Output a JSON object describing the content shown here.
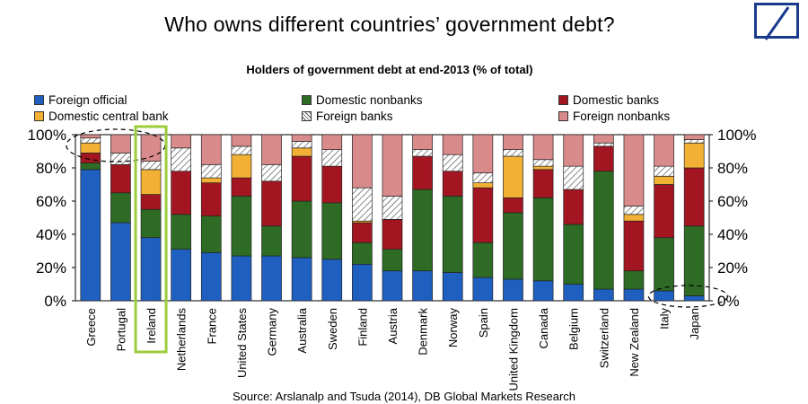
{
  "header": {
    "title": "Who owns different countries’ government debt?",
    "logo_icon": "deutsche-bank-logo"
  },
  "chart_data": {
    "type": "stacked-bar",
    "title": "Holders of government debt at end-2013 (% of total)",
    "ylim": [
      0,
      100
    ],
    "y_ticks": [
      "0%",
      "20%",
      "40%",
      "60%",
      "80%",
      "100%"
    ],
    "legend_placement": "top",
    "categories": [
      "Greece",
      "Portugal",
      "Ireland",
      "Netherlands",
      "France",
      "United States",
      "Germany",
      "Australia",
      "Sweden",
      "Finland",
      "Austria",
      "Denmark",
      "Norway",
      "Spain",
      "United Kingdom",
      "Canada",
      "Belgium",
      "Switzerland",
      "New Zealand",
      "Italy",
      "Japan"
    ],
    "series": [
      {
        "name": "Foreign official",
        "color": "#1f5fbf",
        "values": [
          79,
          47,
          38,
          31,
          29,
          27,
          27,
          26,
          25,
          22,
          18,
          18,
          17,
          14,
          13,
          12,
          10,
          7,
          7,
          6,
          3
        ]
      },
      {
        "name": "Domestic nonbanks",
        "color": "#2e6b24",
        "values": [
          4,
          18,
          17,
          21,
          22,
          36,
          18,
          34,
          34,
          13,
          13,
          49,
          46,
          21,
          40,
          50,
          36,
          71,
          11,
          32,
          42
        ]
      },
      {
        "name": "Domestic banks",
        "color": "#a31621",
        "values": [
          6,
          17,
          9,
          26,
          20,
          11,
          27,
          27,
          22,
          12,
          18,
          20,
          15,
          33,
          9,
          17,
          21,
          15,
          30,
          32,
          35
        ]
      },
      {
        "name": "Domestic central bank",
        "color": "#f2b134",
        "values": [
          6,
          0,
          15,
          0,
          3,
          14,
          0,
          5,
          0,
          1,
          0,
          0,
          0,
          3,
          25,
          2,
          0,
          0,
          4,
          5,
          15
        ]
      },
      {
        "name": "Foreign banks",
        "color": "#hatch",
        "values": [
          3,
          7,
          5,
          14,
          8,
          5,
          10,
          4,
          10,
          20,
          14,
          4,
          10,
          6,
          4,
          4,
          14,
          2,
          5,
          6,
          2
        ]
      },
      {
        "name": "Foreign nonbanks",
        "color": "#d98a8a",
        "values": [
          2,
          11,
          16,
          8,
          18,
          7,
          18,
          4,
          9,
          32,
          37,
          9,
          12,
          23,
          9,
          15,
          19,
          5,
          43,
          19,
          3
        ]
      }
    ],
    "annotations": [
      {
        "type": "dashed-ellipse",
        "target": "Greece"
      },
      {
        "type": "highlight-box",
        "target": "Ireland",
        "color": "#9ccc3c"
      },
      {
        "type": "dashed-ellipse",
        "target": "Italy-Japan"
      }
    ]
  },
  "footer": {
    "source": "Source: Arslanalp and Tsuda (2014), DB Global Markets Research"
  }
}
